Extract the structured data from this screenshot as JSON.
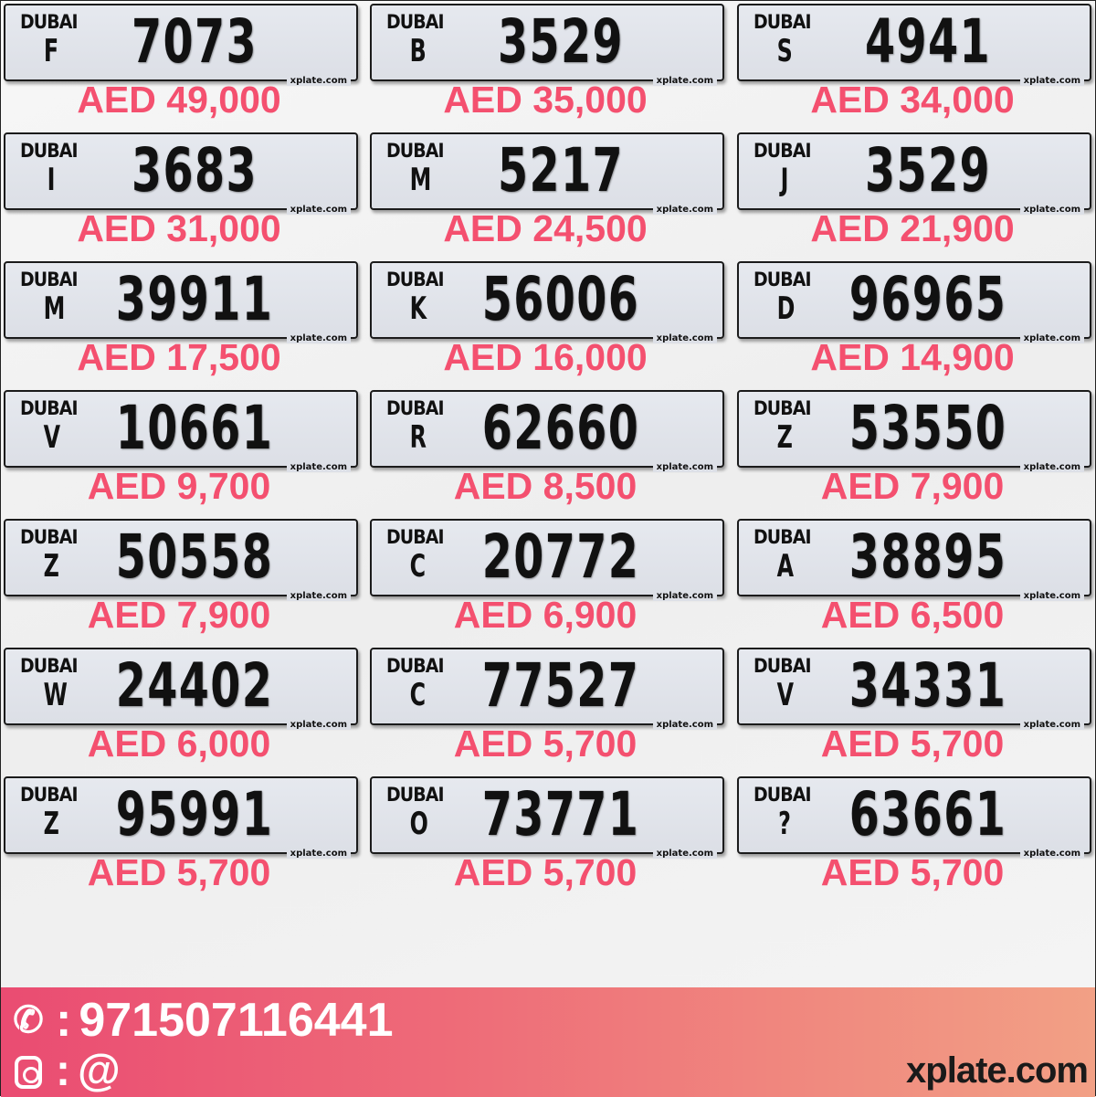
{
  "plate_emirate_label": "DUBAI",
  "plate_watermark": "xplate.com",
  "plates": [
    {
      "letter": "F",
      "number": "7073",
      "price": "AED 49,000"
    },
    {
      "letter": "B",
      "number": "3529",
      "price": "AED 35,000"
    },
    {
      "letter": "S",
      "number": "4941",
      "price": "AED 34,000"
    },
    {
      "letter": "I",
      "number": "3683",
      "price": "AED 31,000"
    },
    {
      "letter": "M",
      "number": "5217",
      "price": "AED 24,500"
    },
    {
      "letter": "J",
      "number": "3529",
      "price": "AED 21,900"
    },
    {
      "letter": "M",
      "number": "39911",
      "price": "AED 17,500"
    },
    {
      "letter": "K",
      "number": "56006",
      "price": "AED 16,000"
    },
    {
      "letter": "D",
      "number": "96965",
      "price": "AED 14,900"
    },
    {
      "letter": "V",
      "number": "10661",
      "price": "AED 9,700"
    },
    {
      "letter": "R",
      "number": "62660",
      "price": "AED 8,500"
    },
    {
      "letter": "Z",
      "number": "53550",
      "price": "AED 7,900"
    },
    {
      "letter": "Z",
      "number": "50558",
      "price": "AED 7,900"
    },
    {
      "letter": "C",
      "number": "20772",
      "price": "AED 6,900"
    },
    {
      "letter": "A",
      "number": "38895",
      "price": "AED 6,500"
    },
    {
      "letter": "W",
      "number": "24402",
      "price": "AED 6,000"
    },
    {
      "letter": "C",
      "number": "77527",
      "price": "AED 5,700"
    },
    {
      "letter": "V",
      "number": "34331",
      "price": "AED 5,700"
    },
    {
      "letter": "Z",
      "number": "95991",
      "price": "AED 5,700"
    },
    {
      "letter": "O",
      "number": "73771",
      "price": "AED 5,700"
    },
    {
      "letter": "?",
      "number": "63661",
      "price": "AED 5,700"
    }
  ],
  "colors": {
    "price": "#f4506f",
    "footer_start": "#ea4c72",
    "footer_end": "#f2a085"
  },
  "footer": {
    "phone_icon": "phone-icon",
    "phone": "971507116441",
    "instagram_icon": "instagram-icon",
    "instagram": "@",
    "separator": ":",
    "brand": "xplate.com"
  }
}
